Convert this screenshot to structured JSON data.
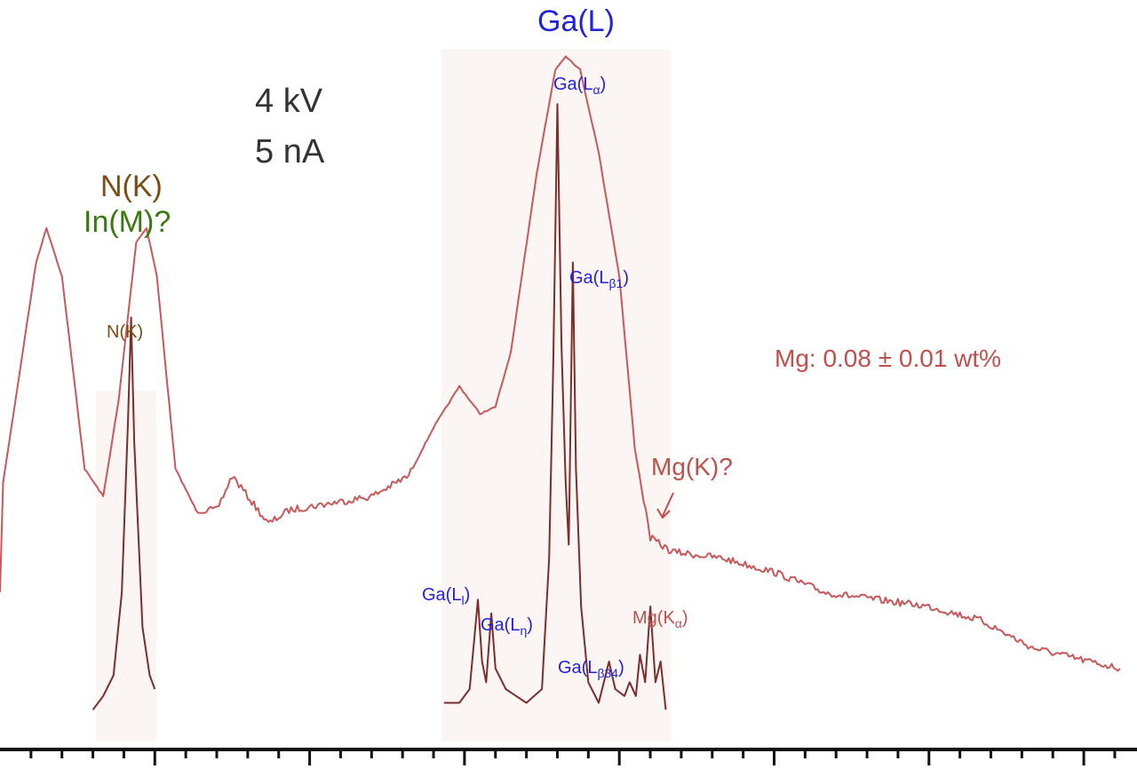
{
  "colors": {
    "envelope": "#c8585a",
    "peaks": "#7a2e2e",
    "highlight": "#fbf6f3",
    "ga": "#2222dd",
    "nk": "#7a4e12",
    "in": "#3a7a10",
    "mg": "#c0504d",
    "text": "#333333",
    "axis": "#111111"
  },
  "conditions": {
    "voltage": "4 kV",
    "current": "5 nA"
  },
  "annotations": {
    "nk_main": "N(K)",
    "in_main": "In(M)?",
    "nk_peak": "N(K)",
    "ga_main": "Ga(L)",
    "ga_la_base": "Ga(L",
    "ga_la_sub": "α",
    "ga_lb1_base": "Ga(L",
    "ga_lb1_sub": "β1",
    "ga_ll_base": "Ga(L",
    "ga_ll_sub": "l",
    "ga_ln_base": "Ga(L",
    "ga_ln_sub": "η",
    "ga_lb34_base": "Ga(L",
    "ga_lb34_sub": "β34",
    "close_paren": ")",
    "mg_ka_base": "Mg(K",
    "mg_ka_sub": "α",
    "mg_k": "Mg(K)?",
    "mg_conc": "Mg: 0.08 ± 0.01 wt%"
  },
  "chart_data": {
    "type": "line",
    "title": "",
    "xlabel": "",
    "ylabel": "",
    "ylim": [
      0,
      1
    ],
    "series": [
      {
        "role": "envelope",
        "points": [
          [
            0,
            0.22
          ],
          [
            0.03,
            0.38
          ],
          [
            0.35,
            0.7
          ],
          [
            0.45,
            0.75
          ],
          [
            0.6,
            0.68
          ],
          [
            0.82,
            0.4
          ],
          [
            1.0,
            0.36
          ],
          [
            1.15,
            0.5
          ],
          [
            1.32,
            0.73
          ],
          [
            1.42,
            0.75
          ],
          [
            1.52,
            0.68
          ],
          [
            1.7,
            0.4
          ],
          [
            1.9,
            0.34
          ],
          [
            2.1,
            0.34
          ],
          [
            2.25,
            0.39
          ],
          [
            2.4,
            0.36
          ],
          [
            2.6,
            0.32
          ],
          [
            2.8,
            0.34
          ],
          [
            3.2,
            0.35
          ],
          [
            3.6,
            0.36
          ],
          [
            3.96,
            0.39
          ],
          [
            4.2,
            0.46
          ],
          [
            4.45,
            0.52
          ],
          [
            4.65,
            0.48
          ],
          [
            4.8,
            0.49
          ],
          [
            4.95,
            0.57
          ],
          [
            5.2,
            0.83
          ],
          [
            5.38,
            0.98
          ],
          [
            5.48,
            1.0
          ],
          [
            5.62,
            0.98
          ],
          [
            5.8,
            0.86
          ],
          [
            6.0,
            0.68
          ],
          [
            6.15,
            0.43
          ],
          [
            6.3,
            0.3
          ],
          [
            6.5,
            0.28
          ],
          [
            7.0,
            0.27
          ],
          [
            7.5,
            0.25
          ],
          [
            8.0,
            0.22
          ],
          [
            8.5,
            0.21
          ],
          [
            9.0,
            0.2
          ],
          [
            9.5,
            0.18
          ],
          [
            10.0,
            0.14
          ],
          [
            10.55,
            0.12
          ],
          [
            10.85,
            0.11
          ]
        ]
      },
      {
        "role": "N(K) peak",
        "points": [
          [
            0.9,
            0.05
          ],
          [
            1.0,
            0.07
          ],
          [
            1.1,
            0.1
          ],
          [
            1.18,
            0.22
          ],
          [
            1.24,
            0.47
          ],
          [
            1.27,
            0.62
          ],
          [
            1.3,
            0.44
          ],
          [
            1.38,
            0.17
          ],
          [
            1.45,
            0.1
          ],
          [
            1.5,
            0.08
          ]
        ]
      },
      {
        "role": "Ga(L) peaks",
        "points": [
          [
            4.3,
            0.06
          ],
          [
            4.45,
            0.06
          ],
          [
            4.55,
            0.08
          ],
          [
            4.63,
            0.21
          ],
          [
            4.67,
            0.12
          ],
          [
            4.71,
            0.09
          ],
          [
            4.76,
            0.19
          ],
          [
            4.8,
            0.11
          ],
          [
            4.9,
            0.08
          ],
          [
            5.0,
            0.07
          ],
          [
            5.1,
            0.06
          ],
          [
            5.25,
            0.08
          ],
          [
            5.32,
            0.27
          ],
          [
            5.36,
            0.55
          ],
          [
            5.4,
            0.93
          ],
          [
            5.44,
            0.58
          ],
          [
            5.48,
            0.38
          ],
          [
            5.51,
            0.29
          ],
          [
            5.55,
            0.7
          ],
          [
            5.58,
            0.4
          ],
          [
            5.63,
            0.2
          ],
          [
            5.7,
            0.09
          ],
          [
            5.8,
            0.06
          ],
          [
            5.9,
            0.12
          ],
          [
            5.96,
            0.08
          ],
          [
            6.05,
            0.07
          ],
          [
            6.1,
            0.09
          ],
          [
            6.16,
            0.07
          ],
          [
            6.2,
            0.13
          ],
          [
            6.25,
            0.09
          ],
          [
            6.3,
            0.2
          ],
          [
            6.35,
            0.09
          ],
          [
            6.4,
            0.12
          ],
          [
            6.45,
            0.05
          ]
        ]
      }
    ],
    "x_ticks": {
      "minor": 0.3,
      "major": 1.5
    }
  }
}
